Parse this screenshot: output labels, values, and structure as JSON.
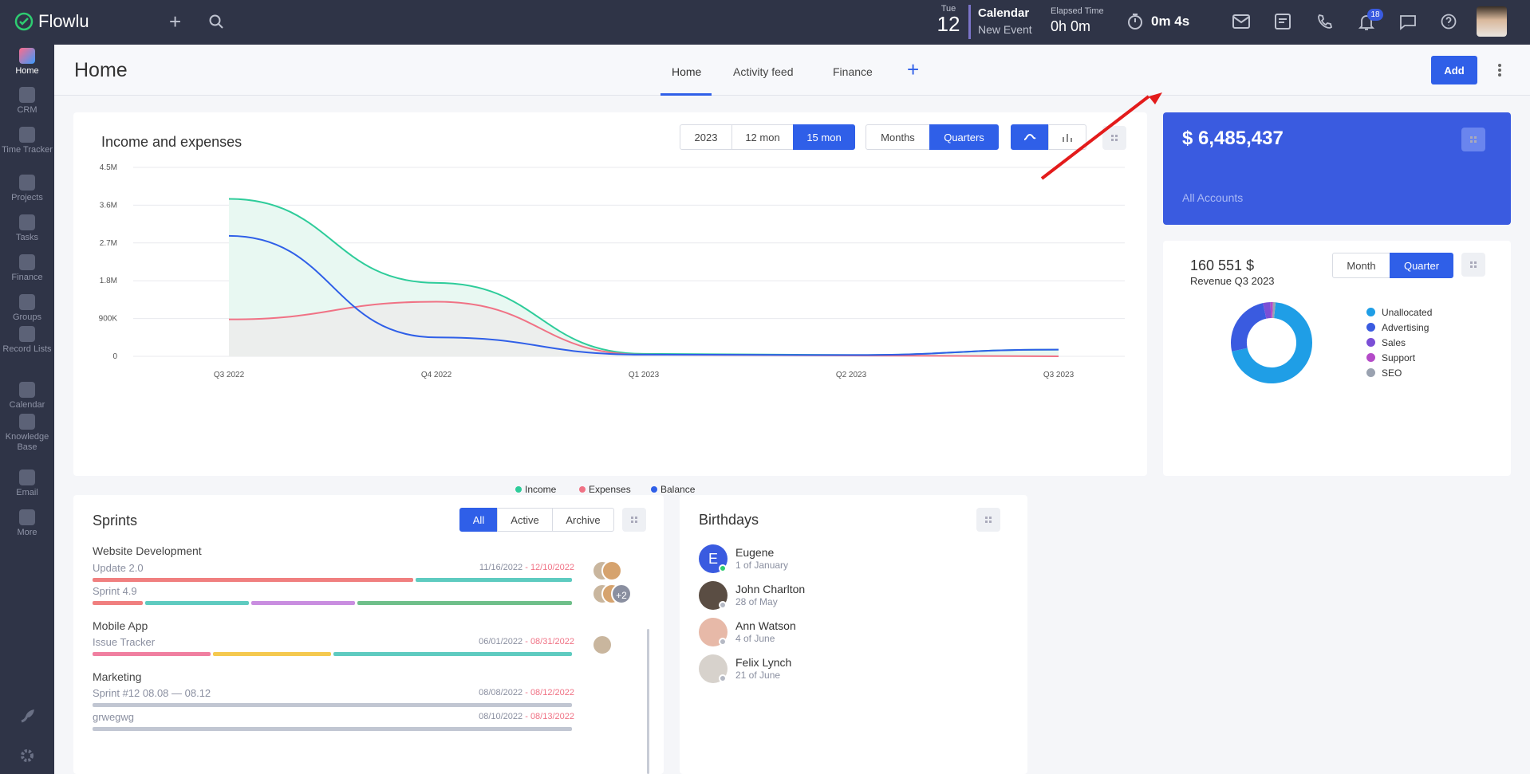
{
  "app": {
    "name": "Flowlu"
  },
  "topbar": {
    "day_name": "Tue",
    "day_num": "12",
    "calendar_title": "Calendar",
    "calendar_sub": "New Event",
    "elapsed_label": "Elapsed Time",
    "elapsed_value": "0h 0m",
    "timer_value": "0m 4s",
    "notif_count": "18"
  },
  "sidebar": {
    "items": [
      {
        "label": "Home",
        "icon": "home-icon"
      },
      {
        "label": "CRM",
        "icon": "crm-icon"
      },
      {
        "label": "Time Tracker",
        "icon": "time-tracker-icon"
      },
      {
        "label": "Projects",
        "icon": "projects-icon"
      },
      {
        "label": "Tasks",
        "icon": "tasks-icon"
      },
      {
        "label": "Finance",
        "icon": "finance-icon"
      },
      {
        "label": "Groups",
        "icon": "groups-icon"
      },
      {
        "label": "Record Lists",
        "icon": "record-lists-icon"
      },
      {
        "label": "Calendar",
        "icon": "calendar-icon"
      },
      {
        "label": "Knowledge Base",
        "icon": "knowledge-base-icon"
      },
      {
        "label": "Email",
        "icon": "email-icon"
      },
      {
        "label": "More",
        "icon": "more-icon"
      }
    ]
  },
  "page": {
    "title": "Home",
    "add_label": "Add",
    "tabs": [
      "Home",
      "Activity feed",
      "Finance"
    ]
  },
  "income": {
    "title": "Income and expenses",
    "period_buttons": [
      "2023",
      "12 mon",
      "15 mon"
    ],
    "group_buttons": [
      "Months",
      "Quarters"
    ],
    "chart_data": {
      "type": "area",
      "x": [
        "Q3 2022",
        "Q4 2022",
        "Q1 2023",
        "Q2 2023",
        "Q3 2023"
      ],
      "y_ticks": [
        "4.5M",
        "3.6M",
        "2.7M",
        "1.8M",
        "900K",
        "0"
      ],
      "ylim": [
        0,
        4500000
      ],
      "series": [
        {
          "name": "Income",
          "color": "#2ecc9a",
          "values": [
            3750000,
            1750000,
            60000,
            30000,
            160000
          ]
        },
        {
          "name": "Expenses",
          "color": "#f07285",
          "values": [
            880000,
            1300000,
            40000,
            20000,
            0
          ]
        },
        {
          "name": "Balance",
          "color": "#2f5fe8",
          "values": [
            2870000,
            450000,
            40000,
            30000,
            160000
          ]
        }
      ]
    }
  },
  "accounts": {
    "amount": "$ 6,485,437",
    "label": "All Accounts"
  },
  "revenue": {
    "amount": "160 551 $",
    "label": "Revenue Q3 2023",
    "buttons": [
      "Month",
      "Quarter"
    ],
    "legend": [
      {
        "name": "Unallocated",
        "color": "#1f9ee6"
      },
      {
        "name": "Advertising",
        "color": "#3a5be0"
      },
      {
        "name": "Sales",
        "color": "#7b4fd6"
      },
      {
        "name": "Support",
        "color": "#b44bc8"
      },
      {
        "name": "SEO",
        "color": "#9aa2b0"
      }
    ]
  },
  "sprints": {
    "title": "Sprints",
    "filters": [
      "All",
      "Active",
      "Archive"
    ],
    "groups": [
      {
        "name": "Website Development",
        "rows": [
          {
            "name": "Update 2.0",
            "start": "11/16/2022",
            "end": "12/10/2022"
          },
          {
            "name": "Sprint 4.9",
            "start": "",
            "end": "",
            "extra": "+2"
          }
        ]
      },
      {
        "name": "Mobile App",
        "rows": [
          {
            "name": "Issue Tracker",
            "start": "06/01/2022",
            "end": "08/31/2022"
          }
        ]
      },
      {
        "name": "Marketing",
        "rows": [
          {
            "name": "Sprint #12 08.08 — 08.12",
            "start": "08/08/2022",
            "end": "08/12/2022"
          },
          {
            "name": "grwegwg",
            "start": "08/10/2022",
            "end": "08/13/2022"
          }
        ]
      }
    ]
  },
  "birthdays": {
    "title": "Birthdays",
    "people": [
      {
        "name": "Eugene",
        "date": "1 of January",
        "initial": "E"
      },
      {
        "name": "John Charlton",
        "date": "28 of May"
      },
      {
        "name": "Ann Watson",
        "date": "4 of June"
      },
      {
        "name": "Felix Lynch",
        "date": "21 of June"
      }
    ]
  }
}
